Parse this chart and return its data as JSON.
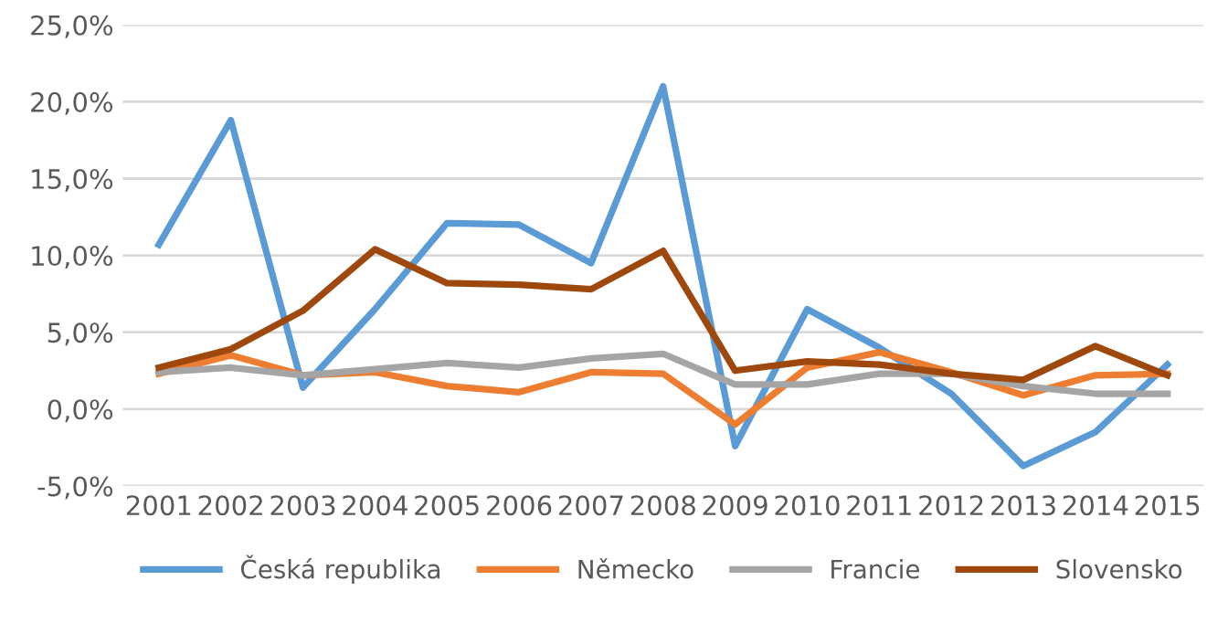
{
  "chart_data": {
    "type": "line",
    "categories": [
      "2001",
      "2002",
      "2003",
      "2004",
      "2005",
      "2006",
      "2007",
      "2008",
      "2009",
      "2010",
      "2011",
      "2012",
      "2013",
      "2014",
      "2015"
    ],
    "series": [
      {
        "name": "Česká republika",
        "color": "#5b9bd5",
        "values": [
          10.7,
          18.8,
          1.4,
          6.5,
          12.1,
          12.0,
          9.5,
          21.0,
          -2.4,
          6.5,
          4.0,
          1.0,
          -3.7,
          -1.5,
          2.9
        ]
      },
      {
        "name": "Německo",
        "color": "#ed7d31",
        "values": [
          2.3,
          3.5,
          2.2,
          2.4,
          1.5,
          1.1,
          2.4,
          2.3,
          -1.0,
          2.7,
          3.7,
          2.4,
          0.9,
          2.2,
          2.3
        ]
      },
      {
        "name": "Francie",
        "color": "#a5a5a5",
        "values": [
          2.4,
          2.7,
          2.2,
          2.6,
          3.0,
          2.7,
          3.3,
          3.6,
          1.6,
          1.6,
          2.3,
          2.3,
          1.5,
          1.0,
          1.0
        ]
      },
      {
        "name": "Slovensko",
        "color": "#9e480e",
        "values": [
          2.7,
          3.9,
          6.4,
          10.4,
          8.2,
          8.1,
          7.8,
          10.3,
          2.5,
          3.1,
          2.9,
          2.3,
          1.9,
          4.1,
          2.2
        ]
      }
    ],
    "ylim": [
      -5,
      25
    ],
    "yticks": [
      {
        "value": -5,
        "label": "-5,0%"
      },
      {
        "value": 0,
        "label": "0,0%"
      },
      {
        "value": 5,
        "label": "5,0%"
      },
      {
        "value": 10,
        "label": "10,0%"
      },
      {
        "value": 15,
        "label": "15,0%"
      },
      {
        "value": 20,
        "label": "20,0%"
      },
      {
        "value": 25,
        "label": "25,0%"
      }
    ],
    "grid": "y",
    "legend": "bottom",
    "marker": "none",
    "line_style": "solid"
  }
}
